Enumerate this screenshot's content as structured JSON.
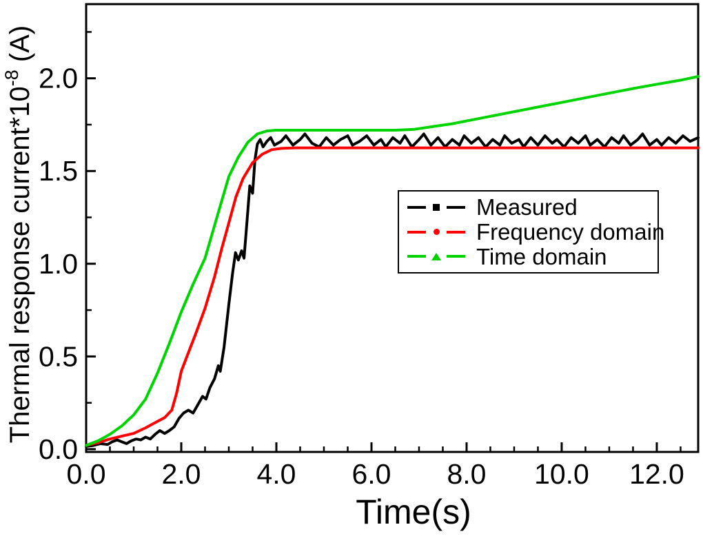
{
  "figure": {
    "background": "#ffffff",
    "axis_color": "#000000",
    "text_color": "#000000"
  },
  "chart_data": {
    "type": "line",
    "title": "",
    "xlabel": "Time(s)",
    "ylabel": {
      "full": "Thermal response current*10^-8 (A)",
      "base": "Thermal response current*10",
      "superscript": "-8",
      "suffix": " (A)"
    },
    "xlim": [
      0,
      12.87
    ],
    "ylim": [
      -0.015,
      2.4
    ],
    "x_major_ticks": [
      0,
      2,
      4,
      6,
      8,
      10,
      12
    ],
    "x_major_labels": [
      "0.0",
      "2.0",
      "4.0",
      "6.0",
      "8.0",
      "10.0",
      "12.0"
    ],
    "x_minor_step": 0.5,
    "y_major_ticks": [
      0,
      0.5,
      1.0,
      1.5,
      2.0
    ],
    "y_major_labels": [
      "0.0",
      "0.5",
      "1.0",
      "1.5",
      "2.0"
    ],
    "y_minor_step": 0.25,
    "grid": false,
    "legend": {
      "position": "middle-right",
      "border_color": "#000000",
      "background": "#ffffff"
    },
    "series": [
      {
        "name": "Measured",
        "color": "#000000",
        "marker": "square",
        "line_width": 4,
        "points": [
          [
            0,
            0.015
          ],
          [
            0.15,
            0.02
          ],
          [
            0.3,
            0.03
          ],
          [
            0.45,
            0.025
          ],
          [
            0.55,
            0.04
          ],
          [
            0.65,
            0.05
          ],
          [
            0.75,
            0.04
          ],
          [
            0.85,
            0.03
          ],
          [
            0.95,
            0.045
          ],
          [
            1.05,
            0.055
          ],
          [
            1.15,
            0.05
          ],
          [
            1.25,
            0.065
          ],
          [
            1.35,
            0.055
          ],
          [
            1.45,
            0.08
          ],
          [
            1.55,
            0.1
          ],
          [
            1.65,
            0.085
          ],
          [
            1.75,
            0.1
          ],
          [
            1.85,
            0.12
          ],
          [
            1.95,
            0.165
          ],
          [
            2.05,
            0.195
          ],
          [
            2.15,
            0.21
          ],
          [
            2.25,
            0.195
          ],
          [
            2.35,
            0.24
          ],
          [
            2.45,
            0.285
          ],
          [
            2.52,
            0.27
          ],
          [
            2.6,
            0.33
          ],
          [
            2.7,
            0.38
          ],
          [
            2.78,
            0.45
          ],
          [
            2.82,
            0.42
          ],
          [
            2.9,
            0.55
          ],
          [
            3.0,
            0.78
          ],
          [
            3.08,
            0.95
          ],
          [
            3.14,
            1.06
          ],
          [
            3.2,
            1.02
          ],
          [
            3.27,
            1.07
          ],
          [
            3.32,
            1.03
          ],
          [
            3.38,
            1.22
          ],
          [
            3.44,
            1.42
          ],
          [
            3.5,
            1.38
          ],
          [
            3.55,
            1.56
          ],
          [
            3.6,
            1.645
          ],
          [
            3.66,
            1.67
          ],
          [
            3.72,
            1.63
          ],
          [
            3.8,
            1.66
          ],
          [
            3.88,
            1.68
          ],
          [
            3.96,
            1.64
          ],
          [
            4.1,
            1.66
          ],
          [
            4.2,
            1.69
          ],
          [
            4.35,
            1.64
          ],
          [
            4.5,
            1.67
          ],
          [
            4.6,
            1.7
          ],
          [
            4.75,
            1.65
          ],
          [
            4.9,
            1.63
          ],
          [
            5.05,
            1.68
          ],
          [
            5.2,
            1.64
          ],
          [
            5.35,
            1.67
          ],
          [
            5.5,
            1.69
          ],
          [
            5.6,
            1.64
          ],
          [
            5.75,
            1.66
          ],
          [
            5.9,
            1.69
          ],
          [
            6.05,
            1.64
          ],
          [
            6.2,
            1.67
          ],
          [
            6.3,
            1.63
          ],
          [
            6.45,
            1.68
          ],
          [
            6.6,
            1.65
          ],
          [
            6.7,
            1.69
          ],
          [
            6.85,
            1.63
          ],
          [
            7.0,
            1.67
          ],
          [
            7.1,
            1.7
          ],
          [
            7.25,
            1.64
          ],
          [
            7.4,
            1.68
          ],
          [
            7.55,
            1.63
          ],
          [
            7.7,
            1.67
          ],
          [
            7.85,
            1.64
          ],
          [
            7.95,
            1.69
          ],
          [
            8.1,
            1.65
          ],
          [
            8.25,
            1.68
          ],
          [
            8.4,
            1.63
          ],
          [
            8.55,
            1.67
          ],
          [
            8.7,
            1.64
          ],
          [
            8.8,
            1.69
          ],
          [
            8.95,
            1.65
          ],
          [
            9.1,
            1.67
          ],
          [
            9.2,
            1.63
          ],
          [
            9.35,
            1.68
          ],
          [
            9.5,
            1.64
          ],
          [
            9.65,
            1.69
          ],
          [
            9.8,
            1.65
          ],
          [
            9.9,
            1.67
          ],
          [
            10.05,
            1.63
          ],
          [
            10.2,
            1.68
          ],
          [
            10.35,
            1.65
          ],
          [
            10.5,
            1.69
          ],
          [
            10.6,
            1.64
          ],
          [
            10.75,
            1.67
          ],
          [
            10.9,
            1.63
          ],
          [
            11.05,
            1.68
          ],
          [
            11.2,
            1.65
          ],
          [
            11.3,
            1.69
          ],
          [
            11.45,
            1.64
          ],
          [
            11.6,
            1.67
          ],
          [
            11.7,
            1.7
          ],
          [
            11.85,
            1.64
          ],
          [
            12.0,
            1.67
          ],
          [
            12.1,
            1.64
          ],
          [
            12.25,
            1.68
          ],
          [
            12.4,
            1.65
          ],
          [
            12.55,
            1.69
          ],
          [
            12.7,
            1.66
          ],
          [
            12.87,
            1.68
          ]
        ]
      },
      {
        "name": "Frequency domain",
        "color": "#ff0000",
        "marker": "circle",
        "line_width": 4,
        "points": [
          [
            0,
            0.02
          ],
          [
            0.25,
            0.035
          ],
          [
            0.5,
            0.055
          ],
          [
            0.75,
            0.07
          ],
          [
            1.0,
            0.085
          ],
          [
            1.25,
            0.115
          ],
          [
            1.5,
            0.15
          ],
          [
            1.65,
            0.17
          ],
          [
            1.8,
            0.21
          ],
          [
            1.9,
            0.3
          ],
          [
            2.0,
            0.42
          ],
          [
            2.15,
            0.52
          ],
          [
            2.3,
            0.62
          ],
          [
            2.5,
            0.76
          ],
          [
            2.7,
            0.93
          ],
          [
            2.85,
            1.08
          ],
          [
            3.0,
            1.22
          ],
          [
            3.15,
            1.36
          ],
          [
            3.3,
            1.46
          ],
          [
            3.5,
            1.545
          ],
          [
            3.7,
            1.59
          ],
          [
            3.9,
            1.615
          ],
          [
            4.1,
            1.622
          ],
          [
            4.4,
            1.625
          ],
          [
            5.0,
            1.625
          ],
          [
            6.0,
            1.625
          ],
          [
            7.0,
            1.625
          ],
          [
            8.0,
            1.625
          ],
          [
            9.0,
            1.625
          ],
          [
            10.0,
            1.625
          ],
          [
            11.0,
            1.625
          ],
          [
            12.0,
            1.625
          ],
          [
            12.87,
            1.625
          ]
        ]
      },
      {
        "name": "Time domain",
        "color": "#00d400",
        "marker": "triangle",
        "line_width": 4,
        "points": [
          [
            0,
            0.02
          ],
          [
            0.25,
            0.045
          ],
          [
            0.5,
            0.08
          ],
          [
            0.75,
            0.125
          ],
          [
            1.0,
            0.185
          ],
          [
            1.25,
            0.27
          ],
          [
            1.5,
            0.41
          ],
          [
            1.75,
            0.57
          ],
          [
            2.0,
            0.74
          ],
          [
            2.25,
            0.89
          ],
          [
            2.5,
            1.03
          ],
          [
            2.75,
            1.25
          ],
          [
            3.0,
            1.47
          ],
          [
            3.2,
            1.575
          ],
          [
            3.4,
            1.655
          ],
          [
            3.6,
            1.7
          ],
          [
            3.8,
            1.716
          ],
          [
            4.0,
            1.72
          ],
          [
            4.5,
            1.72
          ],
          [
            5.0,
            1.72
          ],
          [
            5.5,
            1.72
          ],
          [
            6.0,
            1.72
          ],
          [
            6.5,
            1.72
          ],
          [
            6.9,
            1.725
          ],
          [
            7.3,
            1.74
          ],
          [
            7.7,
            1.755
          ],
          [
            8.1,
            1.775
          ],
          [
            8.5,
            1.795
          ],
          [
            9.0,
            1.82
          ],
          [
            9.5,
            1.845
          ],
          [
            10.0,
            1.87
          ],
          [
            10.5,
            1.895
          ],
          [
            11.0,
            1.92
          ],
          [
            11.5,
            1.945
          ],
          [
            12.0,
            1.968
          ],
          [
            12.5,
            1.99
          ],
          [
            12.87,
            2.01
          ]
        ]
      }
    ]
  }
}
